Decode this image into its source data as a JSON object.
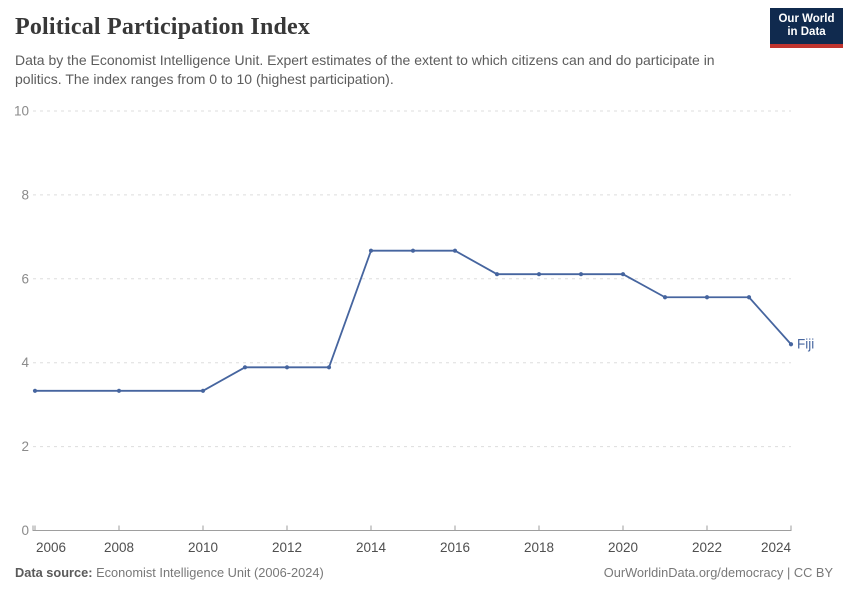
{
  "header": {
    "title": "Political Participation Index",
    "subtitle": "Data by the Economist Intelligence Unit. Expert estimates of the extent to which citizens can and do participate in politics. The index ranges from 0 to 10 (highest participation)."
  },
  "logo": {
    "line1": "Our World",
    "line2": "in Data",
    "bg_color": "#102a4e",
    "stripe_color": "#c0342e"
  },
  "chart_data": {
    "type": "line",
    "title": "Political Participation Index",
    "x": [
      2006,
      2008,
      2010,
      2011,
      2012,
      2013,
      2014,
      2015,
      2016,
      2017,
      2018,
      2019,
      2020,
      2021,
      2022,
      2023,
      2024
    ],
    "series": [
      {
        "name": "Fiji",
        "color": "#46659f",
        "values": [
          3.33,
          3.33,
          3.33,
          3.89,
          3.89,
          3.89,
          6.67,
          6.67,
          6.67,
          6.11,
          6.11,
          6.11,
          6.11,
          5.56,
          5.56,
          5.56,
          4.44
        ]
      }
    ],
    "end_label": "Fiji",
    "xlim": [
      2006,
      2024
    ],
    "ylim": [
      0,
      10
    ],
    "xticks": [
      2006,
      2008,
      2010,
      2012,
      2014,
      2016,
      2018,
      2020,
      2022,
      2024
    ],
    "yticks": [
      0,
      2,
      4,
      6,
      8,
      10
    ],
    "grid": "horizontal-dashed",
    "grid_color": "#dddddd",
    "axis_color": "#9e9e9e",
    "ytick_label_color": "#8b8b8b",
    "xtick_label_color": "#4f4f4f",
    "legend_position": "end-of-line"
  },
  "footer": {
    "source_label": "Data source:",
    "source_text": " Economist Intelligence Unit (2006-2024)",
    "url": "OurWorldinData.org/democracy",
    "divider": " | ",
    "license": "CC BY"
  }
}
